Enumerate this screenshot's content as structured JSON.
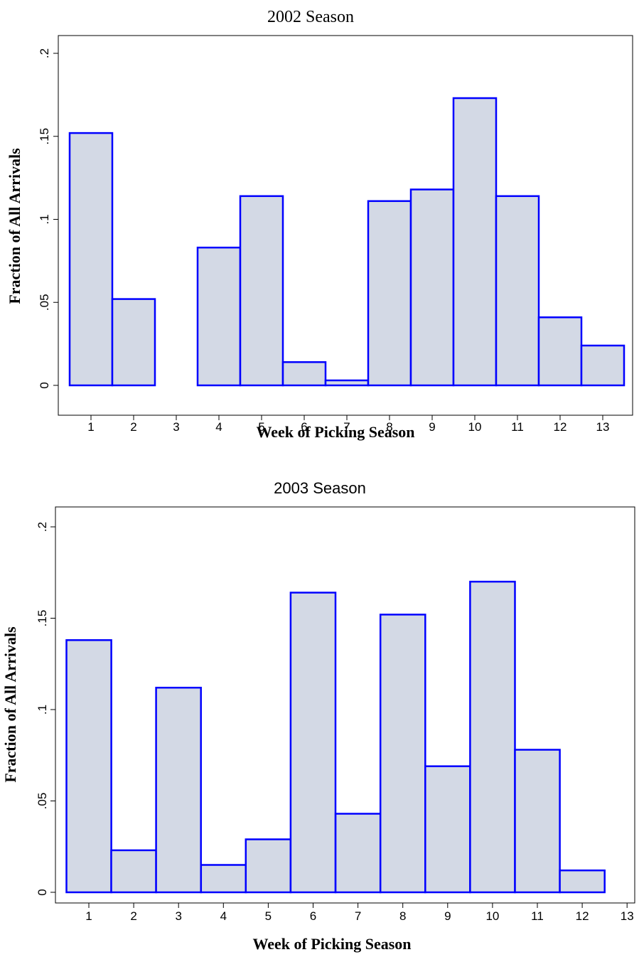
{
  "chart_data": [
    {
      "type": "bar",
      "title": "2002 Season",
      "xlabel": "Week of Picking Season",
      "ylabel": "Fraction of All Arrivals",
      "categories": [
        "1",
        "2",
        "3",
        "4",
        "5",
        "6",
        "7",
        "8",
        "9",
        "10",
        "11",
        "12",
        "13"
      ],
      "values": [
        0.152,
        0.052,
        0,
        0.083,
        0.114,
        0.014,
        0.003,
        0.111,
        0.118,
        0.173,
        0.114,
        0.041,
        0.024
      ],
      "yticks": [
        {
          "v": 0,
          "label": "0"
        },
        {
          "v": 0.05,
          "label": ".05"
        },
        {
          "v": 0.1,
          "label": ".1"
        },
        {
          "v": 0.15,
          "label": ".15"
        },
        {
          "v": 0.2,
          "label": ".2"
        }
      ],
      "ylim": [
        0,
        0.2
      ],
      "grid": false,
      "bar_fill": "#d3d9e5",
      "bar_stroke": "#0000ff"
    },
    {
      "type": "bar",
      "title": "2003 Season",
      "xlabel": "Week of Picking Season",
      "ylabel": "Fraction of All Arrivals",
      "categories": [
        "1",
        "2",
        "3",
        "4",
        "5",
        "6",
        "7",
        "8",
        "9",
        "10",
        "11",
        "12",
        "13"
      ],
      "values": [
        0.138,
        0.023,
        0.112,
        0.015,
        0.029,
        0.164,
        0.043,
        0.152,
        0.069,
        0.17,
        0.078,
        0.012,
        0
      ],
      "yticks": [
        {
          "v": 0,
          "label": "0"
        },
        {
          "v": 0.05,
          "label": ".05"
        },
        {
          "v": 0.1,
          "label": ".1"
        },
        {
          "v": 0.15,
          "label": ".15"
        },
        {
          "v": 0.2,
          "label": ".2"
        }
      ],
      "ylim": [
        0,
        0.2
      ],
      "grid": false,
      "bar_fill": "#d3d9e5",
      "bar_stroke": "#0000ff"
    }
  ]
}
